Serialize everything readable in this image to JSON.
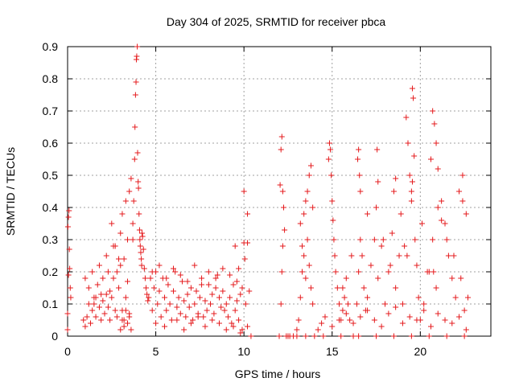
{
  "chart_data": {
    "type": "scatter",
    "title": "Day 304 of 2025, SRMTID for receiver pbca",
    "xlabel": "GPS time / hours",
    "ylabel": "SRMTID / TECUs",
    "xlim": [
      0,
      24
    ],
    "ylim": [
      0,
      0.9
    ],
    "xticks": [
      "0",
      "5",
      "10",
      "15",
      "20"
    ],
    "xtick_values": [
      0,
      5,
      10,
      15,
      20
    ],
    "yticks": [
      "0",
      "0.1",
      "0.2",
      "0.3",
      "0.4",
      "0.5",
      "0.6",
      "0.7",
      "0.8",
      "0.9"
    ],
    "ytick_values": [
      0,
      0.1,
      0.2,
      0.3,
      0.4,
      0.5,
      0.6,
      0.7,
      0.8,
      0.9
    ],
    "grid": true,
    "marker": "+",
    "color": "#e41a1c",
    "series": [
      {
        "name": "SRMTID",
        "x": [
          0.0,
          0.0,
          0.02,
          0.05,
          0.05,
          0.08,
          0.1,
          0.12,
          0.15,
          0.18,
          0.9,
          1.0,
          1.1,
          1.2,
          1.3,
          1.4,
          1.5,
          1.6,
          1.7,
          1.8,
          1.9,
          2.0,
          2.1,
          2.2,
          2.3,
          2.4,
          2.5,
          2.6,
          2.7,
          2.8,
          2.9,
          3.0,
          3.1,
          3.2,
          3.3,
          3.4,
          3.5,
          1.0,
          1.2,
          1.4,
          1.6,
          1.8,
          2.0,
          2.2,
          2.4,
          2.6,
          2.8,
          3.0,
          3.2,
          3.4,
          1.5,
          1.9,
          2.3,
          2.5,
          2.7,
          2.9,
          3.1,
          3.3,
          3.5,
          3.6,
          3.7,
          3.0,
          3.1,
          3.2,
          3.3,
          3.4,
          3.5,
          3.6,
          3.7,
          3.75,
          3.8,
          3.82,
          3.85,
          3.88,
          3.9,
          3.92,
          3.95,
          3.97,
          4.0,
          4.02,
          4.05,
          4.08,
          4.1,
          4.12,
          4.15,
          4.18,
          4.2,
          4.22,
          4.25,
          4.3,
          4.35,
          4.4,
          4.45,
          4.5,
          4.55,
          4.6,
          4.7,
          4.8,
          4.9,
          5.0,
          5.1,
          5.2,
          5.3,
          5.4,
          5.5,
          5.6,
          5.7,
          5.8,
          5.9,
          6.0,
          6.1,
          6.2,
          6.3,
          6.4,
          6.5,
          6.6,
          6.7,
          6.8,
          6.9,
          7.0,
          7.1,
          7.2,
          7.3,
          7.4,
          7.5,
          7.6,
          7.7,
          7.8,
          7.9,
          8.0,
          8.1,
          8.2,
          8.3,
          8.4,
          8.5,
          8.6,
          8.7,
          8.8,
          8.9,
          9.0,
          9.1,
          9.2,
          9.3,
          9.4,
          9.5,
          9.6,
          9.7,
          9.8,
          9.9,
          10.0,
          10.1,
          10.2,
          10.3,
          4.8,
          5.2,
          5.6,
          6.0,
          6.4,
          6.8,
          7.2,
          7.6,
          8.0,
          8.4,
          8.8,
          9.2,
          9.6,
          10.0,
          5.0,
          5.5,
          6.2,
          6.6,
          7.0,
          7.4,
          7.8,
          8.2,
          8.6,
          9.0,
          9.4,
          9.8,
          10.2,
          9.5,
          9.7,
          9.9,
          10.05,
          10.2,
          10.4,
          12.0,
          12.05,
          12.1,
          12.15,
          12.2,
          12.25,
          12.3,
          12.2,
          12.15,
          12.1,
          12.4,
          12.6,
          12.8,
          13.0,
          13.1,
          13.2,
          13.3,
          13.4,
          13.5,
          13.6,
          13.7,
          13.8,
          13.9,
          14.0,
          13.2,
          13.4,
          13.5,
          13.6,
          13.7,
          13.8,
          13.3,
          13.9,
          14.8,
          14.85,
          14.9,
          14.95,
          15.0,
          15.05,
          15.1,
          15.15,
          15.2,
          15.3,
          15.4,
          15.5,
          15.6,
          15.7,
          15.8,
          15.9,
          16.0,
          16.2,
          16.4,
          16.5,
          16.6,
          16.7,
          16.8,
          16.9,
          17.0,
          17.2,
          17.4,
          17.6,
          17.8,
          18.0,
          18.2,
          18.4,
          18.6,
          18.8,
          19.0,
          16.45,
          16.5,
          16.55,
          16.6,
          17.5,
          17.55,
          17.6,
          18.5,
          18.6,
          18.9,
          19.2,
          19.3,
          19.4,
          19.5,
          19.55,
          19.6,
          19.65,
          19.7,
          19.8,
          19.9,
          20.0,
          20.2,
          20.4,
          20.6,
          20.7,
          20.8,
          20.9,
          21.0,
          21.2,
          21.4,
          21.6,
          21.8,
          22.0,
          22.2,
          22.4,
          22.6,
          19.25,
          19.5,
          19.55,
          20.7,
          20.75,
          20.9,
          21.0,
          21.2,
          22.4,
          22.5,
          15.6,
          16.1,
          17.0,
          17.9,
          18.3,
          19.1,
          20.1,
          20.5,
          21.5,
          21.9,
          22.3,
          22.7,
          12.5,
          13.0,
          13.5,
          14.5,
          15.5,
          16.5,
          17.5,
          18.5,
          19.5,
          20.5,
          21.5,
          22.5,
          14.2,
          14.4,
          14.6,
          15.0,
          15.4,
          15.8,
          16.2,
          16.6,
          17.0,
          17.4,
          17.8,
          18.2,
          18.6,
          19.0,
          19.4,
          19.8,
          20.2,
          20.6,
          21.0,
          21.4,
          21.8,
          22.2,
          22.6
        ],
        "y": [
          0.02,
          0.07,
          0.34,
          0.37,
          0.19,
          0.39,
          0.27,
          0.21,
          0.15,
          0.12,
          0.05,
          0.03,
          0.06,
          0.1,
          0.04,
          0.08,
          0.12,
          0.06,
          0.16,
          0.09,
          0.05,
          0.11,
          0.07,
          0.13,
          0.09,
          0.05,
          0.12,
          0.18,
          0.08,
          0.06,
          0.15,
          0.22,
          0.08,
          0.05,
          0.12,
          0.17,
          0.07,
          0.18,
          0.15,
          0.2,
          0.12,
          0.22,
          0.18,
          0.25,
          0.14,
          0.28,
          0.2,
          0.32,
          0.24,
          0.3,
          0.1,
          0.13,
          0.2,
          0.35,
          0.28,
          0.24,
          0.38,
          0.42,
          0.45,
          0.49,
          0.3,
          0.02,
          0.05,
          0.03,
          0.08,
          0.04,
          0.06,
          0.02,
          0.35,
          0.42,
          0.55,
          0.65,
          0.75,
          0.79,
          0.86,
          0.87,
          0.9,
          0.57,
          0.48,
          0.46,
          0.38,
          0.33,
          0.3,
          0.28,
          0.26,
          0.24,
          0.22,
          0.32,
          0.31,
          0.27,
          0.21,
          0.18,
          0.15,
          0.13,
          0.11,
          0.12,
          0.18,
          0.08,
          0.15,
          0.2,
          0.1,
          0.14,
          0.06,
          0.18,
          0.12,
          0.08,
          0.16,
          0.1,
          0.05,
          0.14,
          0.2,
          0.09,
          0.12,
          0.07,
          0.17,
          0.11,
          0.06,
          0.13,
          0.09,
          0.15,
          0.05,
          0.1,
          0.14,
          0.07,
          0.12,
          0.18,
          0.06,
          0.11,
          0.08,
          0.16,
          0.1,
          0.13,
          0.07,
          0.15,
          0.19,
          0.12,
          0.09,
          0.14,
          0.08,
          0.1,
          0.06,
          0.12,
          0.04,
          0.16,
          0.08,
          0.11,
          0.05,
          0.13,
          0.02,
          0.29,
          0.1,
          0.03,
          0.14,
          0.2,
          0.22,
          0.18,
          0.21,
          0.19,
          0.17,
          0.22,
          0.16,
          0.2,
          0.18,
          0.21,
          0.19,
          0.17,
          0.45,
          0.04,
          0.03,
          0.05,
          0.02,
          0.04,
          0.06,
          0.03,
          0.05,
          0.04,
          0.02,
          0.03,
          0.01,
          0.38,
          0.28,
          0.21,
          0.15,
          0.24,
          0.29,
          0.0,
          0.0,
          0.47,
          0.58,
          0.62,
          0.45,
          0.4,
          0.33,
          0.28,
          0.2,
          0.1,
          0.0,
          0.0,
          0.0,
          0.02,
          0.05,
          0.12,
          0.2,
          0.25,
          0.18,
          0.3,
          0.22,
          0.15,
          0.1,
          0.0,
          0.35,
          0.38,
          0.42,
          0.45,
          0.5,
          0.53,
          0.28,
          0.4,
          0.55,
          0.6,
          0.58,
          0.5,
          0.42,
          0.36,
          0.3,
          0.25,
          0.2,
          0.15,
          0.1,
          0.05,
          0.08,
          0.12,
          0.18,
          0.1,
          0.05,
          0.0,
          0.1,
          0.2,
          0.3,
          0.25,
          0.15,
          0.08,
          0.12,
          0.22,
          0.3,
          0.18,
          0.28,
          0.1,
          0.2,
          0.32,
          0.15,
          0.25,
          0.1,
          0.55,
          0.58,
          0.5,
          0.45,
          0.4,
          0.58,
          0.48,
          0.45,
          0.49,
          0.38,
          0.68,
          0.6,
          0.5,
          0.42,
          0.77,
          0.74,
          0.56,
          0.3,
          0.22,
          0.12,
          0.05,
          0.1,
          0.2,
          0.55,
          0.7,
          0.66,
          0.6,
          0.52,
          0.42,
          0.35,
          0.25,
          0.18,
          0.12,
          0.45,
          0.5,
          0.38,
          0.25,
          0.45,
          0.48,
          0.3,
          0.2,
          0.15,
          0.4,
          0.36,
          0.42,
          0.08,
          0.15,
          0.25,
          0.38,
          0.3,
          0.22,
          0.28,
          0.35,
          0.2,
          0.3,
          0.25,
          0.18,
          0.12,
          0.0,
          0.0,
          0.0,
          0.0,
          0.0,
          0.0,
          0.0,
          0.0,
          0.0,
          0.0,
          0.0,
          0.0,
          0.02,
          0.04,
          0.06,
          0.03,
          0.05,
          0.07,
          0.04,
          0.06,
          0.08,
          0.05,
          0.03,
          0.07,
          0.09,
          0.04,
          0.06,
          0.05,
          0.08,
          0.03,
          0.07,
          0.05,
          0.04,
          0.06,
          0.02
        ]
      }
    ]
  }
}
